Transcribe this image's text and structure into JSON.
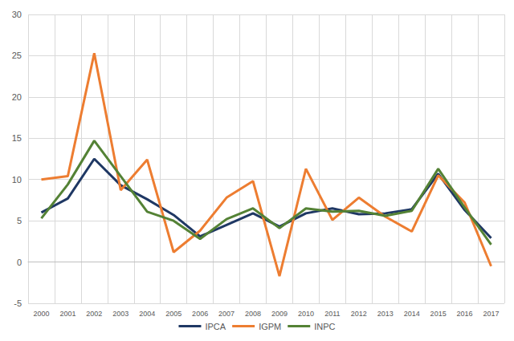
{
  "chart_data": {
    "type": "line",
    "categories": [
      2000,
      2001,
      2002,
      2003,
      2004,
      2005,
      2006,
      2007,
      2008,
      2009,
      2010,
      2011,
      2012,
      2013,
      2014,
      2015,
      2016,
      2017
    ],
    "series": [
      {
        "name": "IPCA",
        "color": "#1f3864",
        "values": [
          6.0,
          7.7,
          12.5,
          9.3,
          7.6,
          5.7,
          3.1,
          4.5,
          5.9,
          4.3,
          5.9,
          6.5,
          5.8,
          5.9,
          6.4,
          10.7,
          6.3,
          2.9
        ]
      },
      {
        "name": "IGPM",
        "color": "#ed7d31",
        "values": [
          10.0,
          10.4,
          25.3,
          8.7,
          12.4,
          1.2,
          3.8,
          7.8,
          9.8,
          -1.7,
          11.3,
          5.1,
          7.8,
          5.5,
          3.7,
          10.5,
          7.2,
          -0.5
        ]
      },
      {
        "name": "INPC",
        "color": "#548235",
        "values": [
          5.3,
          9.4,
          14.7,
          10.4,
          6.1,
          5.0,
          2.8,
          5.2,
          6.5,
          4.1,
          6.5,
          6.1,
          6.2,
          5.6,
          6.2,
          11.3,
          6.6,
          2.1
        ]
      }
    ],
    "ylim": [
      -5,
      30
    ],
    "yticks": [
      -5,
      0,
      5,
      10,
      15,
      20,
      25,
      30
    ],
    "grid": true,
    "legend": "bottom"
  }
}
